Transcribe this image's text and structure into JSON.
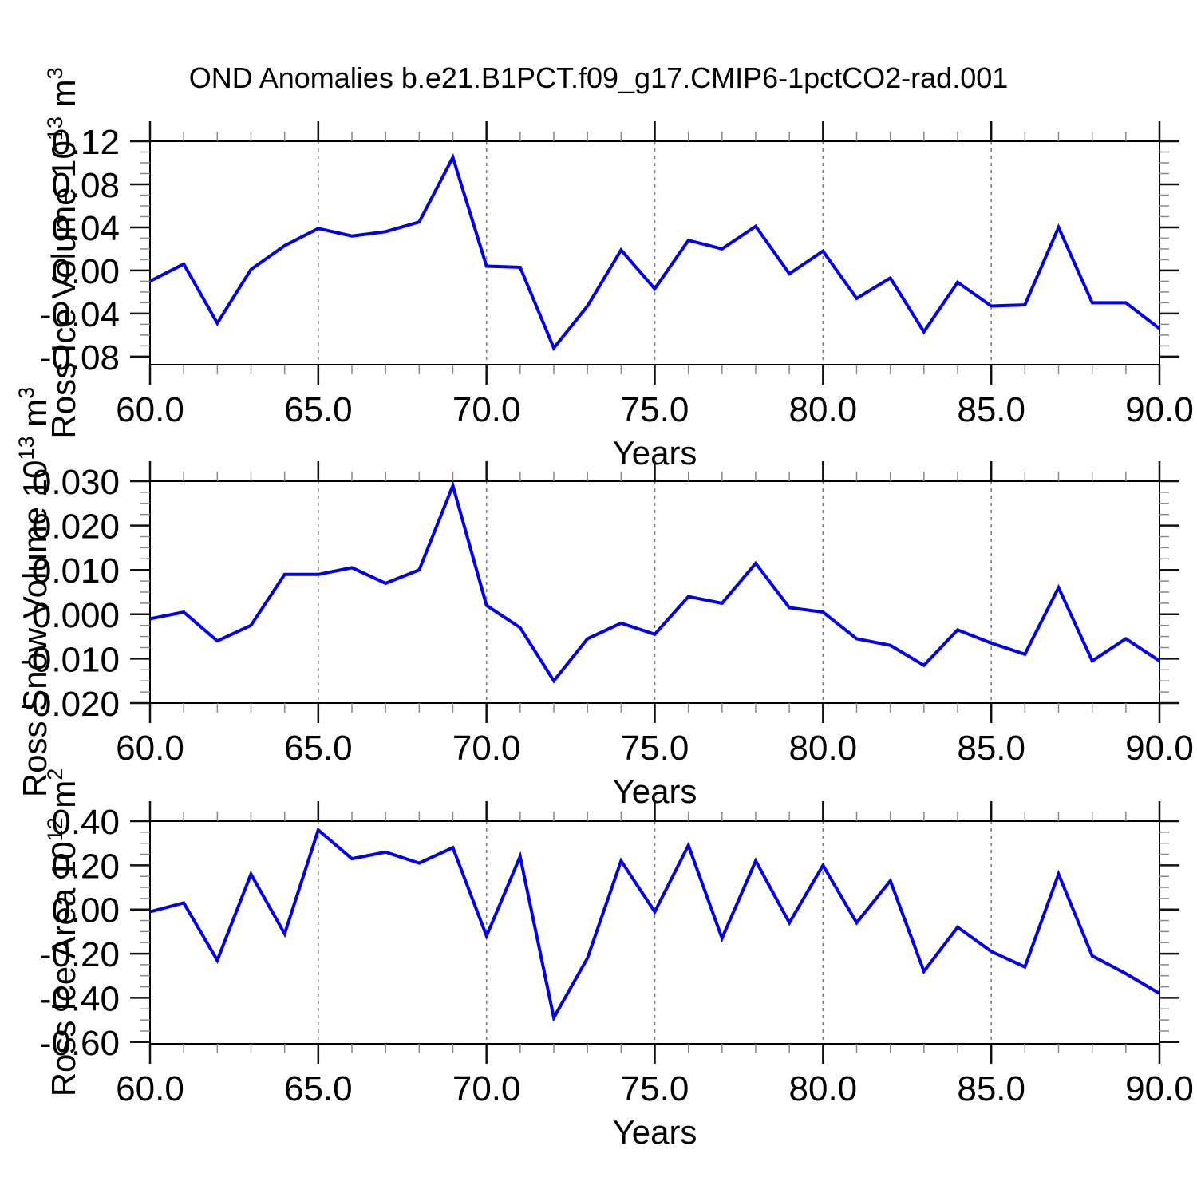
{
  "title": "OND Anomalies b.e21.B1PCT.f09_g17.CMIP6-1pctCO2-rad.001",
  "line_color": "#0000ee",
  "grid_color": "#777777",
  "axis_color": "#000000",
  "chart_data": [
    {
      "type": "line",
      "name": "ross-ice-volume",
      "ylabel_parts": [
        {
          "t": "Ross Ice Volume 10"
        },
        {
          "t": "13",
          "sup": true
        },
        {
          "t": " m"
        },
        {
          "t": "3",
          "sup": true
        }
      ],
      "xlabel": "Years",
      "xlim": [
        60,
        90
      ],
      "ylim": [
        -0.0875,
        0.12
      ],
      "xticks": [
        60,
        65,
        70,
        75,
        80,
        85,
        90
      ],
      "xtick_labels": [
        "60.0",
        "65.0",
        "70.0",
        "75.0",
        "80.0",
        "85.0",
        "90.0"
      ],
      "xtick_minor_step": 1,
      "yticks": [
        0.12,
        0.08,
        0.04,
        0.0,
        -0.04,
        -0.08
      ],
      "ytick_labels": [
        "0.12",
        "0.08",
        "0.04",
        "0.00",
        "-0.04",
        "-0.08"
      ],
      "ytick_minor_step": 0.01,
      "gridlines_x": [
        65,
        70,
        75,
        80,
        85
      ],
      "x": [
        60,
        61,
        62,
        63,
        64,
        65,
        66,
        67,
        68,
        69,
        70,
        71,
        72,
        73,
        74,
        75,
        76,
        77,
        78,
        79,
        80,
        81,
        82,
        83,
        84,
        85,
        86,
        87,
        88,
        89,
        90
      ],
      "values": [
        -0.01,
        0.006,
        -0.049,
        0.001,
        0.023,
        0.039,
        0.032,
        0.036,
        0.045,
        0.105,
        0.004,
        0.003,
        -0.072,
        -0.033,
        0.019,
        -0.017,
        0.028,
        0.02,
        0.041,
        -0.003,
        0.018,
        -0.026,
        -0.007,
        -0.057,
        -0.011,
        -0.033,
        -0.032,
        0.04,
        -0.03,
        -0.03,
        -0.054
      ]
    },
    {
      "type": "line",
      "name": "ross-snow-volume",
      "ylabel_parts": [
        {
          "t": "Ross Snow Volume 10"
        },
        {
          "t": "13",
          "sup": true
        },
        {
          "t": " m"
        },
        {
          "t": "3",
          "sup": true
        }
      ],
      "xlabel": "Years",
      "xlim": [
        60,
        90
      ],
      "ylim": [
        -0.02,
        0.03
      ],
      "xticks": [
        60,
        65,
        70,
        75,
        80,
        85,
        90
      ],
      "xtick_labels": [
        "60.0",
        "65.0",
        "70.0",
        "75.0",
        "80.0",
        "85.0",
        "90.0"
      ],
      "xtick_minor_step": 1,
      "yticks": [
        0.03,
        0.02,
        0.01,
        0.0,
        -0.01,
        -0.02
      ],
      "ytick_labels": [
        "0.030",
        "0.020",
        "0.010",
        "0.000",
        "-0.010",
        "-0.020"
      ],
      "ytick_minor_step": 0.0025,
      "gridlines_x": [
        65,
        70,
        75,
        80,
        85
      ],
      "x": [
        60,
        61,
        62,
        63,
        64,
        65,
        66,
        67,
        68,
        69,
        70,
        71,
        72,
        73,
        74,
        75,
        76,
        77,
        78,
        79,
        80,
        81,
        82,
        83,
        84,
        85,
        86,
        87,
        88,
        89,
        90
      ],
      "values": [
        -0.001,
        0.0005,
        -0.006,
        -0.0025,
        0.009,
        0.009,
        0.0105,
        0.007,
        0.01,
        0.029,
        0.002,
        -0.003,
        -0.015,
        -0.0055,
        -0.002,
        -0.0045,
        0.004,
        0.0025,
        0.0115,
        0.0015,
        0.0005,
        -0.0055,
        -0.007,
        -0.0115,
        -0.0035,
        -0.0065,
        -0.009,
        0.006,
        -0.0105,
        -0.0055,
        -0.0105
      ]
    },
    {
      "type": "line",
      "name": "ross-ice-area",
      "ylabel_parts": [
        {
          "t": "Ross Ice Area 10"
        },
        {
          "t": "12",
          "sup": true
        },
        {
          "t": " m"
        },
        {
          "t": "2",
          "sup": true
        }
      ],
      "xlabel": "Years",
      "xlim": [
        60,
        90
      ],
      "ylim": [
        -0.608,
        0.4
      ],
      "xticks": [
        60,
        65,
        70,
        75,
        80,
        85,
        90
      ],
      "xtick_labels": [
        "60.0",
        "65.0",
        "70.0",
        "75.0",
        "80.0",
        "85.0",
        "90.0"
      ],
      "xtick_minor_step": 1,
      "yticks": [
        0.4,
        0.2,
        0.0,
        -0.2,
        -0.4,
        -0.6
      ],
      "ytick_labels": [
        "0.40",
        "0.20",
        "0.00",
        "-0.20",
        "-0.40",
        "-0.60"
      ],
      "ytick_minor_step": 0.05,
      "gridlines_x": [
        65,
        70,
        75,
        80,
        85
      ],
      "x": [
        60,
        61,
        62,
        63,
        64,
        65,
        66,
        67,
        68,
        69,
        70,
        71,
        72,
        73,
        74,
        75,
        76,
        77,
        78,
        79,
        80,
        81,
        82,
        83,
        84,
        85,
        86,
        87,
        88,
        89,
        90
      ],
      "values": [
        -0.01,
        0.03,
        -0.23,
        0.16,
        -0.11,
        0.36,
        0.23,
        0.26,
        0.21,
        0.28,
        -0.12,
        0.24,
        -0.49,
        -0.22,
        0.22,
        -0.01,
        0.29,
        -0.13,
        0.22,
        -0.06,
        0.2,
        -0.06,
        0.13,
        -0.28,
        -0.08,
        -0.19,
        -0.26,
        0.16,
        -0.21,
        -0.29,
        -0.38
      ]
    }
  ]
}
